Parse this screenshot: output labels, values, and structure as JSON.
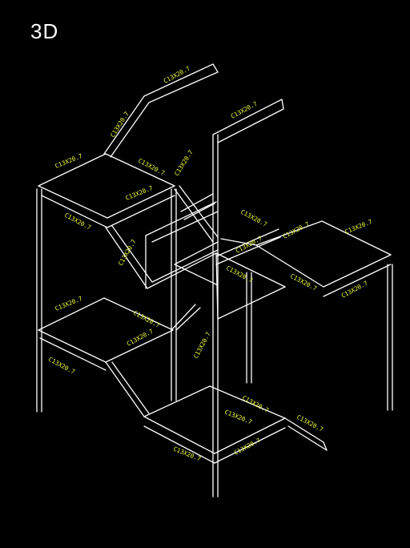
{
  "view": {
    "label": "3D"
  },
  "colors": {
    "background": "#000000",
    "members": "#ffffff",
    "labels": "#f2ff3a"
  },
  "members": {
    "labels": [
      "C13X20.7",
      "C13X20.7",
      "C13X20.7",
      "C13X20.7",
      "C13X20.7",
      "C13X20.7",
      "C13X20.7",
      "C13X20.7",
      "C13X20.7",
      "C13X20.7",
      "C13X20.7",
      "C13X20.7",
      "C13X20.7",
      "C13X20.7",
      "C13X20.7",
      "C13X20.7",
      "C13X20.7",
      "C13X20.7",
      "C13X20.7",
      "C13X20.7",
      "C13X20.7",
      "C13X20.7",
      "C13X20.7",
      "C13X20.7",
      "C13X20.7",
      "C13X20.7"
    ]
  }
}
